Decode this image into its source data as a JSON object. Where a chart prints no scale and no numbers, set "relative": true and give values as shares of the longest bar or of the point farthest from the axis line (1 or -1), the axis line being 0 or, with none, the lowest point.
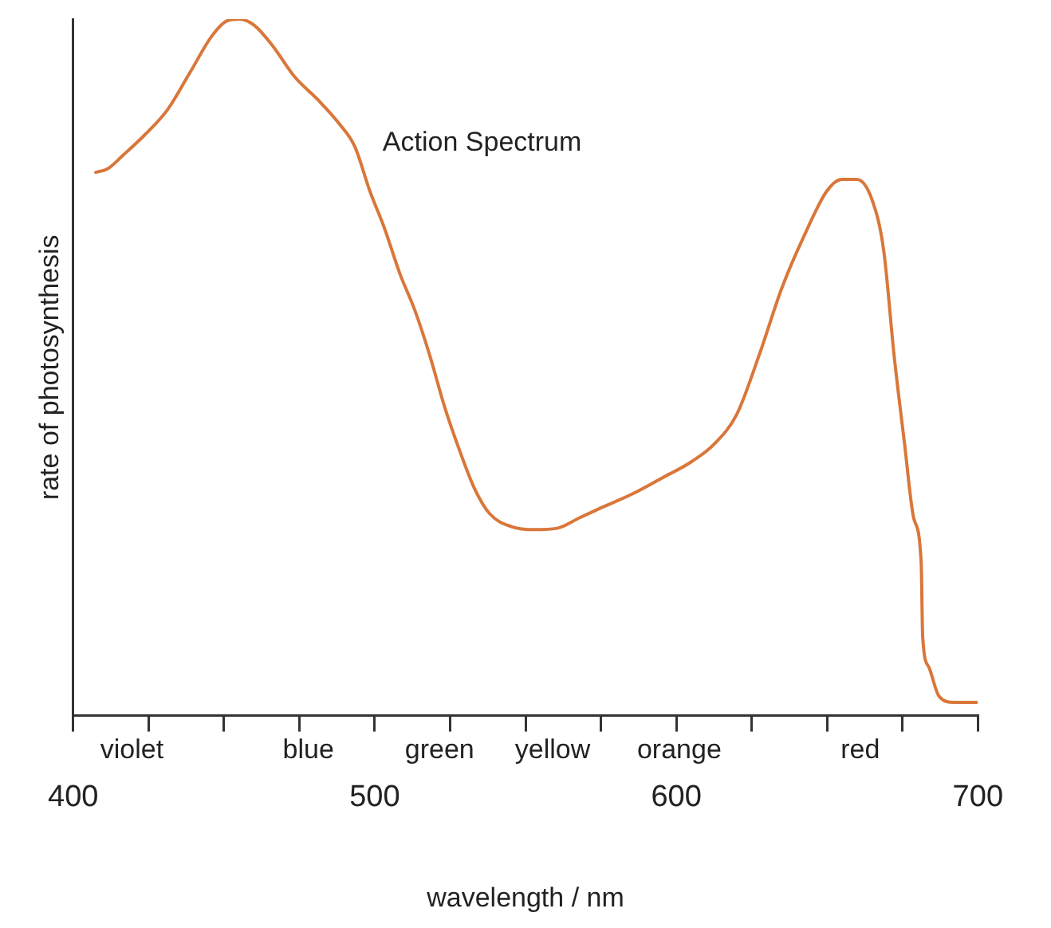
{
  "chart_data": {
    "type": "line",
    "xlabel": "wavelength / nm",
    "ylabel": "rate of photosynthesis",
    "relative": true,
    "marker": "none",
    "line_style": "solid",
    "xlim": [
      400,
      700
    ],
    "xticks": [
      400,
      {
        "value": 425,
        "label": null
      },
      {
        "value": 450,
        "label": null
      },
      {
        "value": 475,
        "label": null
      },
      500,
      {
        "value": 525,
        "label": null
      },
      {
        "value": 550,
        "label": null
      },
      {
        "value": 575,
        "label": null
      },
      600,
      {
        "value": 625,
        "label": null
      },
      {
        "value": 650,
        "label": null
      },
      {
        "value": 675,
        "label": null
      },
      700
    ],
    "annotations": [
      "violet",
      "blue",
      "green",
      "yellow",
      "orange",
      "red"
    ],
    "series": [
      {
        "name": "Action Spectrum",
        "color": "#d9773a",
        "x": [
          407.5,
          411.4,
          416.4,
          423.8,
          431.3,
          438.7,
          446.2,
          451.2,
          455.1,
          460.1,
          466.1,
          473.5,
          481,
          488.4,
          493.4,
          498.4,
          503.3,
          508.3,
          513.3,
          518.2,
          523.2,
          528.2,
          533.1,
          538.1,
          545.6,
          553,
          560.5,
          567.9,
          575.4,
          585.3,
          595.2,
          605.2,
          612.6,
          620.1,
          627.5,
          635,
          642.4,
          649.9,
          654.8,
          659.8,
          664.8,
          668.8,
          672.2,
          675.7,
          678.7,
          681.2,
          681.7,
          683.7,
          687.1,
          692.1,
          699.6
        ],
        "values": [
          0.78,
          0.785,
          0.804,
          0.834,
          0.87,
          0.923,
          0.977,
          0.998,
          1,
          0.991,
          0.962,
          0.917,
          0.885,
          0.849,
          0.817,
          0.753,
          0.699,
          0.635,
          0.582,
          0.518,
          0.443,
          0.38,
          0.326,
          0.29,
          0.271,
          0.267,
          0.269,
          0.284,
          0.299,
          0.318,
          0.341,
          0.365,
          0.39,
          0.433,
          0.518,
          0.614,
          0.689,
          0.753,
          0.77,
          0.77,
          0.742,
          0.667,
          0.518,
          0.39,
          0.284,
          0.22,
          0.113,
          0.07,
          0.028,
          0.019,
          0.019
        ]
      }
    ]
  }
}
